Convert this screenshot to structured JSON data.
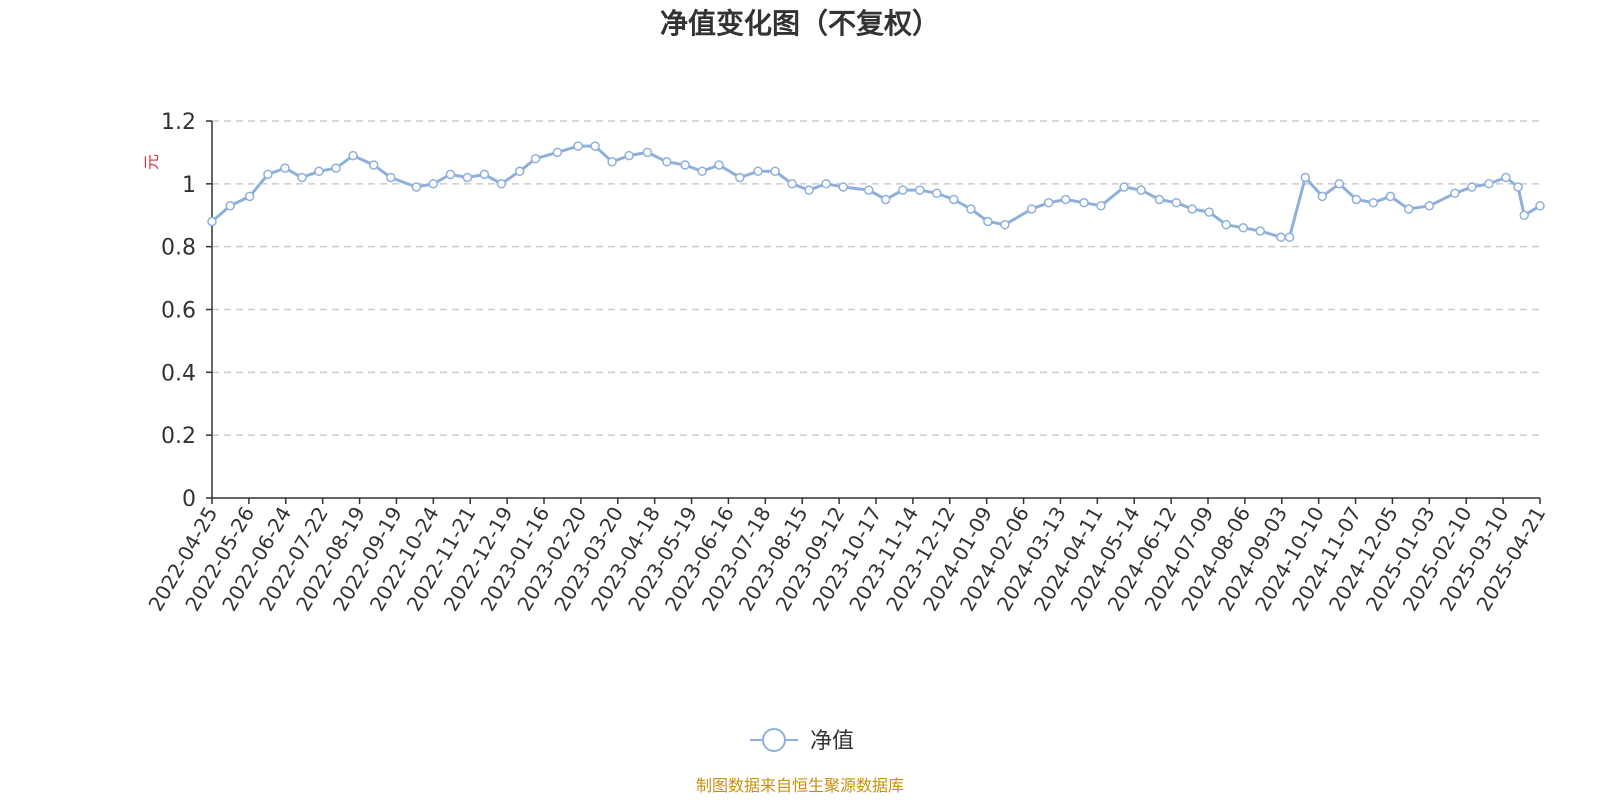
{
  "colors": {
    "series": "#8fb0dc",
    "axis": "#333333",
    "grid": "#cccccc",
    "source": "#c8900e",
    "unit": "#e03030"
  },
  "chart_data": {
    "type": "line",
    "title": "净值变化图（不复权）",
    "ylabel": "元",
    "ylim": [
      0,
      1.2
    ],
    "yticks": [
      "0",
      "0.2",
      "0.4",
      "0.6",
      "0.8",
      "1",
      "1.2"
    ],
    "grid": "horizontal dashed",
    "legend": "bottom-center",
    "xtick_labels": [
      "2022-04-25",
      "2022-05-26",
      "2022-06-24",
      "2022-07-22",
      "2022-08-19",
      "2022-09-19",
      "2022-10-24",
      "2022-11-21",
      "2022-12-19",
      "2023-01-16",
      "2023-02-20",
      "2023-03-20",
      "2023-04-18",
      "2023-05-19",
      "2023-06-16",
      "2023-07-18",
      "2023-08-15",
      "2023-09-12",
      "2023-10-17",
      "2023-11-14",
      "2023-12-12",
      "2024-01-09",
      "2024-02-06",
      "2024-03-13",
      "2024-04-11",
      "2024-05-14",
      "2024-06-12",
      "2024-07-09",
      "2024-08-06",
      "2024-09-03",
      "2024-10-10",
      "2024-11-07",
      "2024-12-05",
      "2025-01-03",
      "2025-02-10",
      "2025-03-10",
      "2025-04-21"
    ],
    "series": [
      {
        "name": "净值",
        "x": [
          "2022-04-25",
          "2022-05-10",
          "2022-05-26",
          "2022-06-10",
          "2022-06-24",
          "2022-07-08",
          "2022-07-22",
          "2022-08-05",
          "2022-08-19",
          "2022-09-05",
          "2022-09-19",
          "2022-10-10",
          "2022-10-24",
          "2022-11-07",
          "2022-11-21",
          "2022-12-05",
          "2022-12-19",
          "2023-01-03",
          "2023-01-16",
          "2023-02-03",
          "2023-02-20",
          "2023-03-06",
          "2023-03-20",
          "2023-04-03",
          "2023-04-18",
          "2023-05-04",
          "2023-05-19",
          "2023-06-02",
          "2023-06-16",
          "2023-07-03",
          "2023-07-18",
          "2023-08-01",
          "2023-08-15",
          "2023-08-29",
          "2023-09-12",
          "2023-09-26",
          "2023-10-17",
          "2023-10-31",
          "2023-11-14",
          "2023-11-28",
          "2023-12-12",
          "2023-12-26",
          "2024-01-09",
          "2024-01-23",
          "2024-02-06",
          "2024-02-28",
          "2024-03-13",
          "2024-03-27",
          "2024-04-11",
          "2024-04-25",
          "2024-05-14",
          "2024-05-28",
          "2024-06-12",
          "2024-06-26",
          "2024-07-09",
          "2024-07-23",
          "2024-08-06",
          "2024-08-20",
          "2024-09-03",
          "2024-09-20",
          "2024-09-27",
          "2024-10-10",
          "2024-10-24",
          "2024-11-07",
          "2024-11-21",
          "2024-12-05",
          "2024-12-19",
          "2025-01-03",
          "2025-01-20",
          "2025-02-10",
          "2025-02-24",
          "2025-03-10",
          "2025-03-24",
          "2025-04-03",
          "2025-04-08",
          "2025-04-21"
        ],
        "values": [
          0.88,
          0.93,
          0.96,
          1.03,
          1.05,
          1.02,
          1.04,
          1.05,
          1.09,
          1.06,
          1.02,
          0.99,
          1.0,
          1.03,
          1.02,
          1.03,
          1.0,
          1.04,
          1.08,
          1.1,
          1.12,
          1.12,
          1.07,
          1.09,
          1.1,
          1.07,
          1.06,
          1.04,
          1.06,
          1.02,
          1.04,
          1.04,
          1.0,
          0.98,
          1.0,
          0.99,
          0.98,
          0.95,
          0.98,
          0.98,
          0.97,
          0.95,
          0.92,
          0.88,
          0.87,
          0.92,
          0.94,
          0.95,
          0.94,
          0.93,
          0.99,
          0.98,
          0.95,
          0.94,
          0.92,
          0.91,
          0.87,
          0.86,
          0.85,
          0.83,
          0.83,
          1.02,
          0.96,
          1.0,
          0.95,
          0.94,
          0.96,
          0.92,
          0.93,
          0.97,
          0.99,
          1.0,
          1.02,
          0.99,
          0.9,
          0.93
        ]
      }
    ]
  },
  "footer": {
    "source": "制图数据来自恒生聚源数据库"
  }
}
